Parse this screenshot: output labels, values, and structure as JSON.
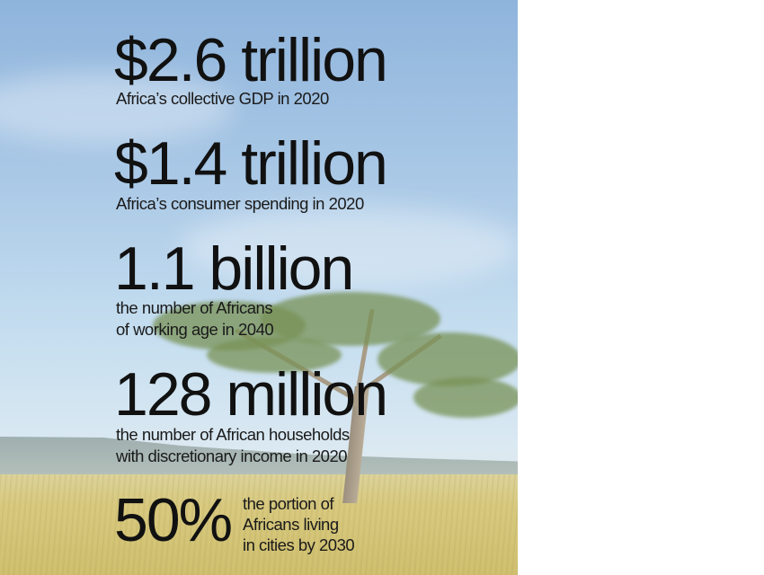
{
  "stats": [
    {
      "value": "$2.6 trillion",
      "lines": [
        "Africa’s collective GDP in 2020"
      ]
    },
    {
      "value": "$1.4 trillion",
      "lines": [
        "Africa’s consumer spending in 2020"
      ]
    },
    {
      "value": "1.1 billion",
      "lines": [
        "the number of Africans",
        "of working age in 2040"
      ]
    },
    {
      "value": "128 million",
      "lines": [
        "the number of African households",
        "with discretionary income in 2020"
      ]
    },
    {
      "value": "50%",
      "lines": [
        "the portion of",
        "Africans living",
        "in cities by 2030"
      ]
    }
  ],
  "colors": {
    "text": "#111111",
    "sky": "#a9c8e6",
    "grass": "#d8c97f",
    "tree": "#789155"
  }
}
